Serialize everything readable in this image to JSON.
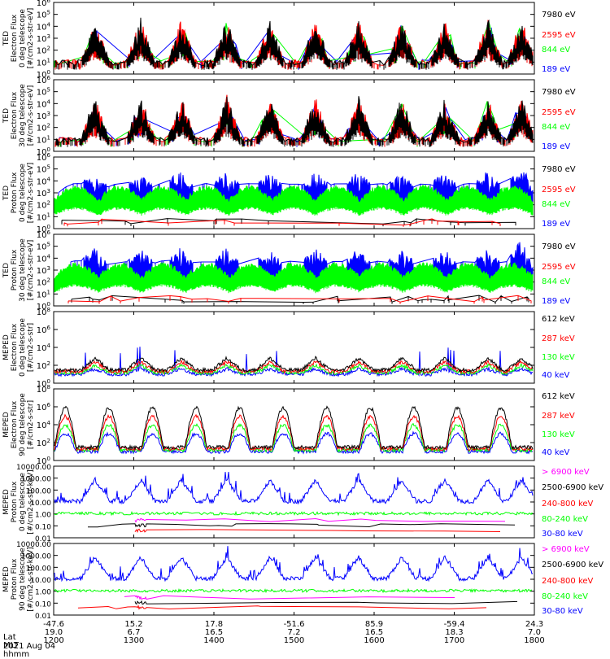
{
  "footer": {
    "row_labels": [
      "Lat",
      "MLT",
      "hhmm"
    ],
    "date": "2021 Aug 04",
    "x_ticks": [
      {
        "lat": "-47.6",
        "mlt": "19.0",
        "hhmm": "1200"
      },
      {
        "lat": "15.2",
        "mlt": "6.7",
        "hhmm": "1300"
      },
      {
        "lat": "17.8",
        "mlt": "16.5",
        "hhmm": "1400"
      },
      {
        "lat": "-51.6",
        "mlt": "7.2",
        "hhmm": "1500"
      },
      {
        "lat": "85.9",
        "mlt": "16.5",
        "hhmm": "1600"
      },
      {
        "lat": "-59.4",
        "mlt": "18.3",
        "hhmm": "1700"
      },
      {
        "lat": "24.3",
        "mlt": "7.0",
        "hhmm": "1800"
      }
    ]
  },
  "colors": {
    "black": "#000000",
    "red": "#ff0000",
    "green": "#00ff00",
    "blue": "#0000ff",
    "magenta": "#ff00ff"
  },
  "chart_data": [
    {
      "type": "line",
      "ylog": true,
      "ylim": [
        1,
        1000000
      ],
      "ylabel": [
        "TED",
        "Electron Flux",
        "0 deg telescope",
        "[#/cm2-s-str-eV]"
      ],
      "yticks": [
        "10^0",
        "10^1",
        "10^2",
        "10^3",
        "10^4",
        "10^5",
        "10^6"
      ],
      "series": [
        {
          "name": "7980 eV",
          "color": "#000000"
        },
        {
          "name": "2595 eV",
          "color": "#ff0000"
        },
        {
          "name": "844 eV",
          "color": "#00ff00"
        },
        {
          "name": "189 eV",
          "color": "#0000ff"
        }
      ]
    },
    {
      "type": "line",
      "ylog": true,
      "ylim": [
        1,
        1000000
      ],
      "ylabel": [
        "TED",
        "Electron Flux",
        "30 deg telescope",
        "[#/cm2-s-str-eV]"
      ],
      "yticks": [
        "10^0",
        "10^1",
        "10^2",
        "10^3",
        "10^4",
        "10^5",
        "10^6"
      ],
      "series": [
        {
          "name": "7980 eV",
          "color": "#000000"
        },
        {
          "name": "2595 eV",
          "color": "#ff0000"
        },
        {
          "name": "844 eV",
          "color": "#00ff00"
        },
        {
          "name": "189 eV",
          "color": "#0000ff"
        }
      ]
    },
    {
      "type": "line",
      "ylog": true,
      "ylim": [
        1,
        1000000
      ],
      "ylabel": [
        "TED",
        "Proton Flux",
        "0 deg telescope",
        "[#/cm2-s-str-eV]"
      ],
      "yticks": [
        "10^0",
        "10^1",
        "10^2",
        "10^3",
        "10^4",
        "10^5",
        "10^6"
      ],
      "series": [
        {
          "name": "7980 eV",
          "color": "#000000"
        },
        {
          "name": "2595 eV",
          "color": "#ff0000"
        },
        {
          "name": "844 eV",
          "color": "#00ff00"
        },
        {
          "name": "189 eV",
          "color": "#0000ff"
        }
      ]
    },
    {
      "type": "line",
      "ylog": true,
      "ylim": [
        1,
        1000000
      ],
      "ylabel": [
        "TED",
        "Proton Flux",
        "30 deg telescope",
        "[#/cm2-s-str-eV]"
      ],
      "yticks": [
        "10^0",
        "10^1",
        "10^2",
        "10^3",
        "10^4",
        "10^5",
        "10^6"
      ],
      "series": [
        {
          "name": "7980 eV",
          "color": "#000000"
        },
        {
          "name": "2595 eV",
          "color": "#ff0000"
        },
        {
          "name": "844 eV",
          "color": "#00ff00"
        },
        {
          "name": "189 eV",
          "color": "#0000ff"
        }
      ]
    },
    {
      "type": "line",
      "ylog": true,
      "ylim": [
        1,
        100000000
      ],
      "ylabel": [
        "MEPED",
        "Electron Flux",
        "0 deg telescope",
        "[#/cm2-s-str]"
      ],
      "yticks": [
        "10^0",
        "10^2",
        "10^4",
        "10^6",
        "10^8"
      ],
      "series": [
        {
          "name": "612 keV",
          "color": "#000000"
        },
        {
          "name": "287 keV",
          "color": "#ff0000"
        },
        {
          "name": "130 keV",
          "color": "#00ff00"
        },
        {
          "name": "40 keV",
          "color": "#0000ff"
        }
      ]
    },
    {
      "type": "line",
      "ylog": true,
      "ylim": [
        1,
        100000000
      ],
      "ylabel": [
        "MEPED",
        "Electron Flux",
        "90 deg telescope",
        "[#/cm2-s-str]"
      ],
      "yticks": [
        "10^0",
        "10^2",
        "10^4",
        "10^6",
        "10^8"
      ],
      "series": [
        {
          "name": "612 keV",
          "color": "#000000"
        },
        {
          "name": "287 keV",
          "color": "#ff0000"
        },
        {
          "name": "130 keV",
          "color": "#00ff00"
        },
        {
          "name": "40 keV",
          "color": "#0000ff"
        }
      ]
    },
    {
      "type": "line",
      "ylog": true,
      "ylim": [
        0.01,
        10000
      ],
      "ylabel": [
        "MEPED",
        "Proton Flux",
        "0 deg telescope",
        "[#/cm2-s-str-keV]"
      ],
      "yticks": [
        "0.01",
        "0.10",
        "1.00",
        "10.00",
        "100.00",
        "1000.00",
        "10000.00"
      ],
      "series": [
        {
          "name": "> 6900 keV",
          "color": "#ff00ff"
        },
        {
          "name": "2500-6900 keV",
          "color": "#000000"
        },
        {
          "name": "240-800 keV",
          "color": "#ff0000"
        },
        {
          "name": "80-240 keV",
          "color": "#00ff00"
        },
        {
          "name": "30-80 keV",
          "color": "#0000ff"
        }
      ]
    },
    {
      "type": "line",
      "ylog": true,
      "ylim": [
        0.01,
        10000
      ],
      "ylabel": [
        "MEPED",
        "Proton Flux",
        "90 deg telescope",
        "[#/cm2-s-str-keV]"
      ],
      "yticks": [
        "0.01",
        "0.10",
        "1.00",
        "10.00",
        "100.00",
        "1000.00",
        "10000.00"
      ],
      "series": [
        {
          "name": "> 6900 keV",
          "color": "#ff00ff"
        },
        {
          "name": "2500-6900 keV",
          "color": "#000000"
        },
        {
          "name": "240-800 keV",
          "color": "#ff0000"
        },
        {
          "name": "80-240 keV",
          "color": "#00ff00"
        },
        {
          "name": "30-80 keV",
          "color": "#0000ff"
        }
      ]
    }
  ]
}
